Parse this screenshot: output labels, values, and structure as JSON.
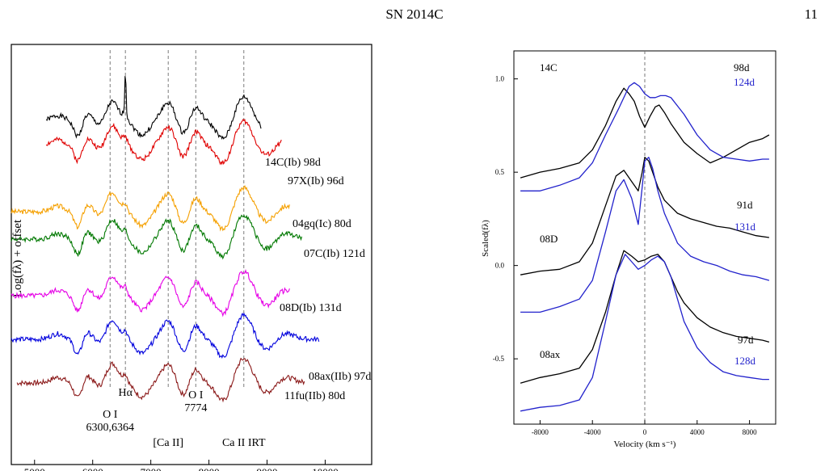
{
  "page": {
    "title": "SN 2014C",
    "page_number": "11"
  },
  "chart_data": [
    {
      "type": "line",
      "ylabel": "Log(fλ) + offset",
      "x_tick_labels": [
        "5000",
        "6000",
        "7000",
        "8000",
        "9000",
        "10000"
      ],
      "xlim": [
        4600,
        10800
      ],
      "series": [
        {
          "name": "14C(Ib) 98d",
          "color": "#000000",
          "offset": 0,
          "range": [
            5200,
            8900
          ],
          "seed": 1
        },
        {
          "name": "97X(Ib) 96d",
          "color": "#e00000",
          "offset": 1,
          "range": [
            5200,
            9250
          ],
          "seed": 2
        },
        {
          "name": "04gq(Ic) 80d",
          "color": "#f5a000",
          "offset": 2,
          "range": [
            4600,
            9400
          ],
          "seed": 3
        },
        {
          "name": "07C(Ib) 121d",
          "color": "#007800",
          "offset": 3,
          "range": [
            4600,
            9600
          ],
          "seed": 4
        },
        {
          "name": "08D(Ib) 131d",
          "color": "#e600e6",
          "offset": 4,
          "range": [
            4600,
            9400
          ],
          "seed": 5
        },
        {
          "name": "08ax(IIb) 97d",
          "color": "#0000dd",
          "offset": 5,
          "range": [
            4600,
            9900
          ],
          "seed": 6
        },
        {
          "name": "11fu(IIb) 80d",
          "color": "#8b1a1a",
          "offset": 6,
          "range": [
            4700,
            9650
          ],
          "seed": 7
        }
      ],
      "line_markers": [
        {
          "wavelength": 6300,
          "label": "O I\n6300,6364"
        },
        {
          "wavelength": 6563,
          "label": "Hα"
        },
        {
          "wavelength": 7300,
          "label": "[Ca II]"
        },
        {
          "wavelength": 7774,
          "label": "O I\n7774"
        },
        {
          "wavelength": 8600,
          "label": "Ca II IRT"
        }
      ]
    },
    {
      "type": "line",
      "xlabel": "Velocity (km s⁻¹)",
      "ylabel": "Scaled(fλ)",
      "xlim": [
        -10000,
        10000
      ],
      "ylim": [
        -0.85,
        1.15
      ],
      "x_ticks": [
        -8000,
        -4000,
        0,
        4000,
        8000
      ],
      "y_ticks": [
        1.0,
        0.5,
        0.0,
        -0.5
      ],
      "x_tick_labels": [
        "-8000",
        "-4000",
        "0",
        "4000",
        "8000"
      ],
      "y_tick_labels": [
        "1.0",
        "0.5",
        "0.0",
        "-0.5"
      ],
      "groups": [
        {
          "label": "14C",
          "series": [
            {
              "name": "98d",
              "color": "#000000",
              "x": [
                -9500,
                -8000,
                -6500,
                -5000,
                -4000,
                -3000,
                -2200,
                -1600,
                -1200,
                -800,
                -400,
                0,
                400,
                800,
                1100,
                1500,
                2000,
                3000,
                4000,
                5000,
                6000,
                7000,
                8000,
                9000,
                9500
              ],
              "y": [
                0.47,
                0.5,
                0.52,
                0.55,
                0.62,
                0.75,
                0.88,
                0.95,
                0.92,
                0.88,
                0.8,
                0.74,
                0.8,
                0.85,
                0.86,
                0.82,
                0.76,
                0.66,
                0.6,
                0.55,
                0.58,
                0.62,
                0.66,
                0.68,
                0.7
              ]
            },
            {
              "name": "124d",
              "color": "#2222cc",
              "x": [
                -9500,
                -8000,
                -6500,
                -5000,
                -4000,
                -3000,
                -2000,
                -1200,
                -800,
                -400,
                0,
                400,
                800,
                1200,
                1600,
                2000,
                3000,
                4000,
                5000,
                6000,
                7000,
                8000,
                9000,
                9500
              ],
              "y": [
                0.4,
                0.4,
                0.43,
                0.47,
                0.55,
                0.7,
                0.84,
                0.96,
                0.98,
                0.96,
                0.92,
                0.9,
                0.9,
                0.91,
                0.91,
                0.9,
                0.81,
                0.7,
                0.62,
                0.58,
                0.57,
                0.56,
                0.57,
                0.57
              ]
            }
          ]
        },
        {
          "label": "08D",
          "series": [
            {
              "name": "91d",
              "color": "#000000",
              "x": [
                -9500,
                -8000,
                -6500,
                -5000,
                -4000,
                -3000,
                -2200,
                -1600,
                -1000,
                -500,
                -200,
                0,
                300,
                600,
                1000,
                1500,
                2500,
                3500,
                4500,
                5500,
                6500,
                7500,
                8500,
                9500
              ],
              "y": [
                -0.05,
                -0.03,
                -0.02,
                0.02,
                0.12,
                0.32,
                0.48,
                0.51,
                0.45,
                0.4,
                0.5,
                0.58,
                0.56,
                0.5,
                0.42,
                0.35,
                0.28,
                0.25,
                0.23,
                0.21,
                0.2,
                0.18,
                0.16,
                0.15
              ]
            },
            {
              "name": "131d",
              "color": "#2222cc",
              "x": [
                -9500,
                -8000,
                -6500,
                -5000,
                -4000,
                -3000,
                -2200,
                -1600,
                -1000,
                -500,
                -200,
                0,
                300,
                600,
                1000,
                1500,
                2500,
                3500,
                4500,
                5500,
                6500,
                7500,
                8500,
                9500
              ],
              "y": [
                -0.25,
                -0.25,
                -0.22,
                -0.18,
                -0.08,
                0.18,
                0.4,
                0.46,
                0.36,
                0.22,
                0.42,
                0.56,
                0.58,
                0.52,
                0.4,
                0.28,
                0.12,
                0.05,
                0.02,
                0.0,
                -0.03,
                -0.05,
                -0.06,
                -0.08
              ]
            }
          ]
        },
        {
          "label": "08ax",
          "series": [
            {
              "name": "97d",
              "color": "#000000",
              "x": [
                -9500,
                -8000,
                -6500,
                -5000,
                -4000,
                -3000,
                -2200,
                -1600,
                -1000,
                -500,
                0,
                500,
                1000,
                1500,
                2000,
                2500,
                3000,
                4000,
                5000,
                6000,
                7000,
                8000,
                9000,
                9500
              ],
              "y": [
                -0.63,
                -0.6,
                -0.58,
                -0.55,
                -0.45,
                -0.25,
                -0.05,
                0.08,
                0.05,
                0.02,
                0.03,
                0.05,
                0.06,
                0.02,
                -0.06,
                -0.14,
                -0.2,
                -0.28,
                -0.33,
                -0.36,
                -0.38,
                -0.39,
                -0.4,
                -0.41
              ]
            },
            {
              "name": "128d",
              "color": "#2222cc",
              "x": [
                -9500,
                -8000,
                -6500,
                -5000,
                -4000,
                -3000,
                -2200,
                -1500,
                -1000,
                -500,
                0,
                500,
                1000,
                1500,
                2000,
                2500,
                3000,
                4000,
                5000,
                6000,
                7000,
                8000,
                9000,
                9500
              ],
              "y": [
                -0.78,
                -0.76,
                -0.75,
                -0.72,
                -0.6,
                -0.3,
                -0.05,
                0.06,
                0.02,
                -0.02,
                0.0,
                0.03,
                0.05,
                0.02,
                -0.06,
                -0.18,
                -0.3,
                -0.44,
                -0.52,
                -0.57,
                -0.59,
                -0.6,
                -0.61,
                -0.61
              ]
            }
          ]
        }
      ]
    }
  ]
}
